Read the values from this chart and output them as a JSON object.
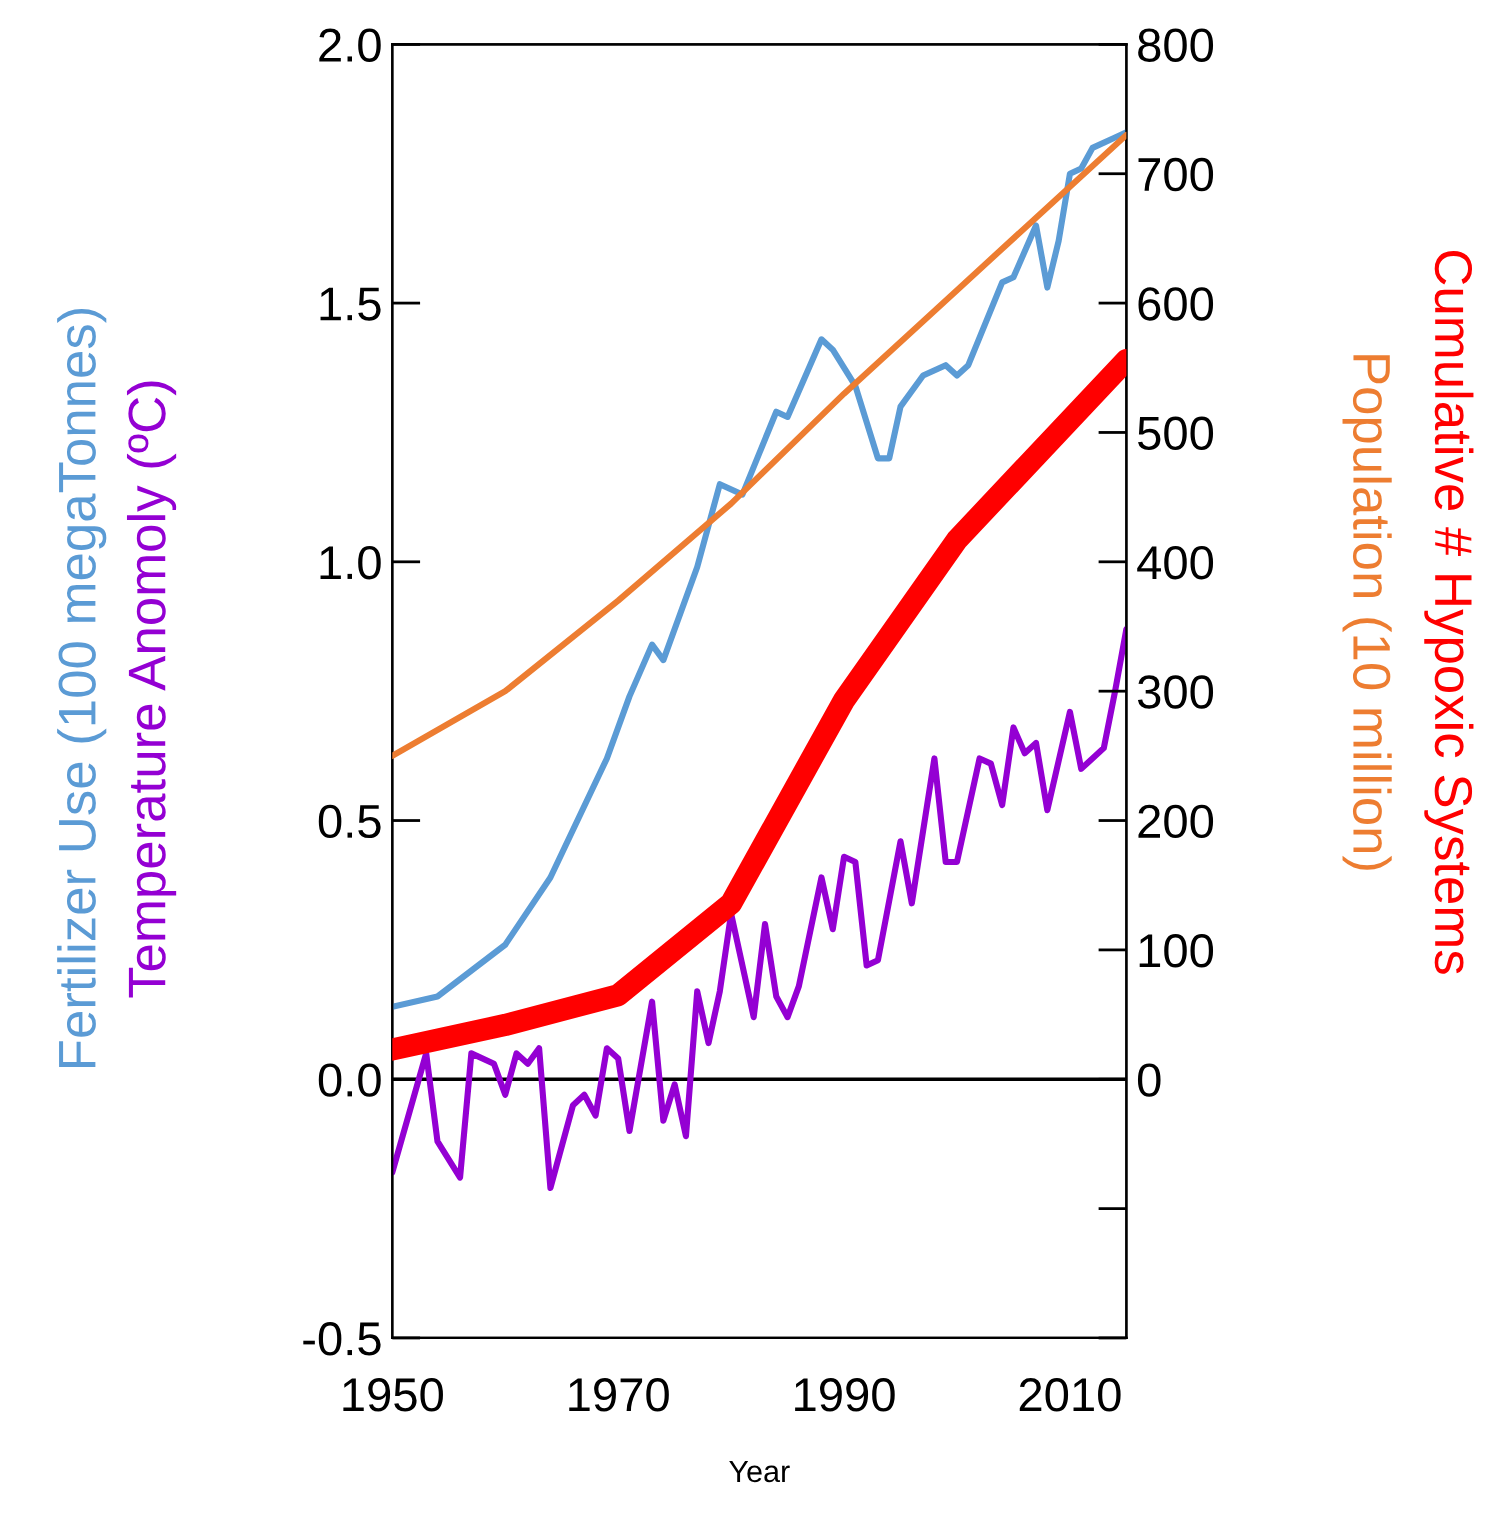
{
  "chart_data": {
    "type": "line",
    "xlabel": "Year",
    "xlim": [
      1950,
      2015
    ],
    "xticks": [
      1950,
      1970,
      1990,
      2010
    ],
    "ylim": [
      -0.5,
      2.0
    ],
    "yticks": [
      -0.5,
      {
        "value": 0,
        "label": "0.0"
      },
      0.5,
      {
        "value": 1,
        "label": "1.0"
      },
      1.5,
      {
        "value": 2,
        "label": "2.0"
      }
    ],
    "y2lim": [
      -200,
      800
    ],
    "y2ticks": [
      {
        "value": -200,
        "label": null
      },
      {
        "value": -100,
        "label": null
      },
      0,
      100,
      200,
      300,
      400,
      500,
      600,
      700,
      800
    ],
    "grid": false,
    "legend": false,
    "marker": "none",
    "line_style": "solid",
    "ref_lines": [
      {
        "axis": "y",
        "value": 0,
        "label": null,
        "color": "#000000"
      }
    ],
    "series": [
      {
        "name": "Fertilizer Use (100 megaTonnes)",
        "color": "#5b9bd5",
        "x": [
          1950,
          1954,
          1960,
          1964,
          1969,
          1971,
          1973,
          1974,
          1977,
          1979,
          1981,
          1984,
          1985,
          1988,
          1989,
          1991,
          1993,
          1994,
          1995,
          1997,
          1999,
          2000,
          2001,
          2004,
          2005,
          2007,
          2008,
          2009,
          2010,
          2011,
          2012,
          2014,
          2015
        ],
        "values": [
          0.14,
          0.16,
          0.26,
          0.39,
          0.62,
          0.74,
          0.84,
          0.81,
          0.99,
          1.15,
          1.13,
          1.29,
          1.28,
          1.43,
          1.41,
          1.34,
          1.2,
          1.2,
          1.3,
          1.36,
          1.38,
          1.36,
          1.38,
          1.54,
          1.55,
          1.65,
          1.53,
          1.62,
          1.75,
          1.76,
          1.8,
          1.82,
          1.83
        ]
      },
      {
        "name": "Temperature Anomoly (ºC)",
        "color": "#9400d3",
        "x": [
          1950,
          1953,
          1954,
          1956,
          1957,
          1959,
          1960,
          1961,
          1962,
          1963,
          1964,
          1966,
          1967,
          1968,
          1969,
          1970,
          1971,
          1973,
          1974,
          1975,
          1976,
          1977,
          1978,
          1979,
          1980,
          1982,
          1983,
          1984,
          1985,
          1986,
          1988,
          1989,
          1990,
          1991,
          1992,
          1993,
          1995,
          1996,
          1998,
          1999,
          2000,
          2002,
          2003,
          2004,
          2005,
          2006,
          2007,
          2008,
          2010,
          2011,
          2013,
          2014,
          2015
        ],
        "values": [
          -0.18,
          0.05,
          -0.12,
          -0.19,
          0.05,
          0.03,
          -0.03,
          0.05,
          0.03,
          0.06,
          -0.21,
          -0.05,
          -0.03,
          -0.07,
          0.06,
          0.04,
          -0.1,
          0.15,
          -0.08,
          -0.01,
          -0.11,
          0.17,
          0.07,
          0.17,
          0.32,
          0.12,
          0.3,
          0.16,
          0.12,
          0.18,
          0.39,
          0.29,
          0.43,
          0.42,
          0.22,
          0.23,
          0.46,
          0.34,
          0.62,
          0.42,
          0.42,
          0.62,
          0.61,
          0.53,
          0.68,
          0.63,
          0.65,
          0.52,
          0.71,
          0.6,
          0.64,
          0.75,
          0.87
        ]
      },
      {
        "name": "Cumulative # Hypoxic Systems",
        "color": "#ff0000",
        "axis": "y2",
        "x": [
          1950,
          1960,
          1970,
          1980,
          1990,
          2000,
          2015
        ],
        "values": [
          23,
          42,
          65,
          136,
          293,
          417,
          556
        ]
      },
      {
        "name": "Population (10 million)",
        "color": "#ed7d31",
        "axis": "y2",
        "x": [
          1950,
          1960,
          1970,
          1980,
          1990,
          2000,
          2010,
          2015
        ],
        "values": [
          250,
          300,
          370,
          445,
          530,
          610,
          690,
          730
        ]
      }
    ]
  }
}
